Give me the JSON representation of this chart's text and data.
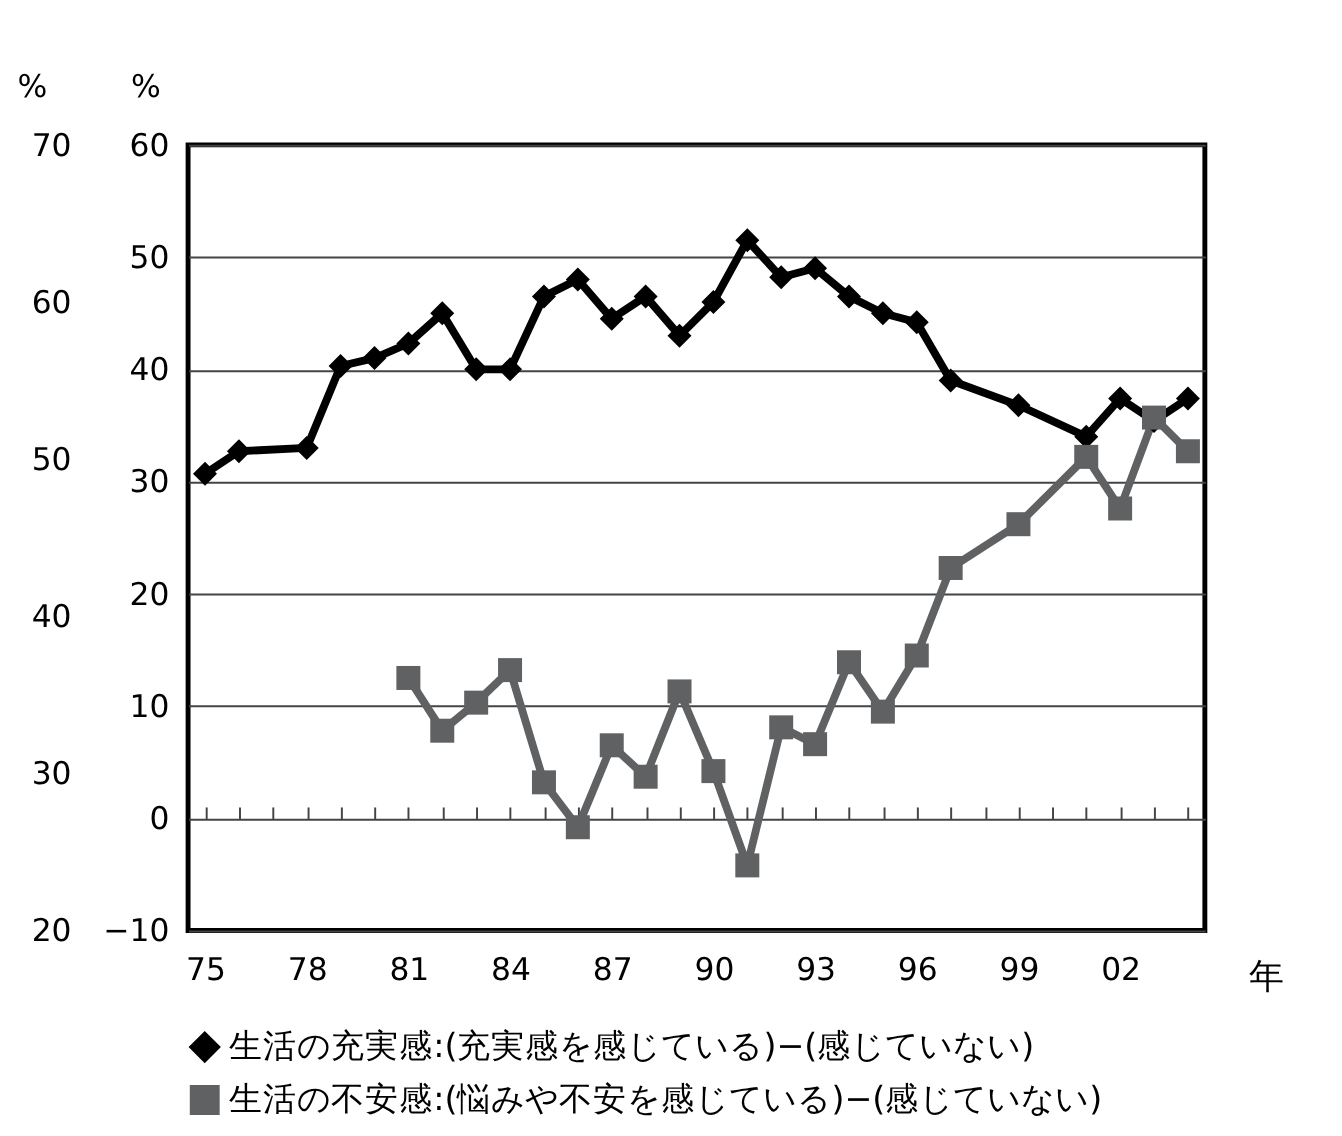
{
  "chart_data": {
    "type": "line",
    "xlabel": "年",
    "ylabel": "%",
    "y2label": "%",
    "xlim": [
      1974.5,
      2004.5
    ],
    "xticks": [
      {
        "value": 1975,
        "label": "75"
      },
      {
        "value": 1978,
        "label": "78"
      },
      {
        "value": 1981,
        "label": "81"
      },
      {
        "value": 1984,
        "label": "84"
      },
      {
        "value": 1987,
        "label": "87"
      },
      {
        "value": 1990,
        "label": "90"
      },
      {
        "value": 1993,
        "label": "93"
      },
      {
        "value": 1996,
        "label": "96"
      },
      {
        "value": 1999,
        "label": "99"
      },
      {
        "value": 2002,
        "label": "02"
      }
    ],
    "ylim": [
      -10,
      60
    ],
    "yticks": [
      -10,
      0,
      10,
      20,
      30,
      40,
      50,
      60
    ],
    "y2lim": [
      20,
      70
    ],
    "y2ticks": [
      20,
      30,
      40,
      50,
      60,
      70
    ],
    "grid": "y",
    "legend": "bottom",
    "line_style": "solid",
    "series": [
      {
        "name": "生活の充実感:(充実感を感じている)−(感じていない)",
        "color": "#000000",
        "marker": "diamond",
        "x": [
          1975,
          1976,
          1978,
          1979,
          1980,
          1981,
          1982,
          1983,
          1984,
          1985,
          1986,
          1987,
          1988,
          1989,
          1990,
          1991,
          1992,
          1993,
          1994,
          1995,
          1996,
          1997,
          1999,
          2001,
          2002,
          2003,
          2004
        ],
        "values": [
          30.7,
          32.7,
          33,
          40.3,
          41,
          42.3,
          45,
          40,
          40,
          46.5,
          48,
          44.5,
          46.5,
          43,
          46,
          51.5,
          48.2,
          49,
          46.5,
          45,
          44.2,
          39,
          36.8,
          34,
          37.4,
          35.4,
          37.4
        ]
      },
      {
        "name": "生活の不安感:(悩みや不安を感じている)−(感じていない)",
        "color": "#5f6163",
        "marker": "square",
        "x": [
          1981,
          1982,
          1983,
          1984,
          1985,
          1986,
          1987,
          1988,
          1989,
          1990,
          1991,
          1992,
          1993,
          1994,
          1995,
          1996,
          1997,
          1999,
          2001,
          2002,
          2003,
          2004
        ],
        "values": [
          12.5,
          7.8,
          10.3,
          13.2,
          3.2,
          -0.8,
          6.5,
          3.7,
          11.3,
          4.2,
          -4.2,
          8.1,
          6.6,
          13.9,
          9.5,
          14.5,
          22.3,
          26.2,
          32.2,
          27.6,
          35.7,
          32.7
        ]
      }
    ]
  }
}
